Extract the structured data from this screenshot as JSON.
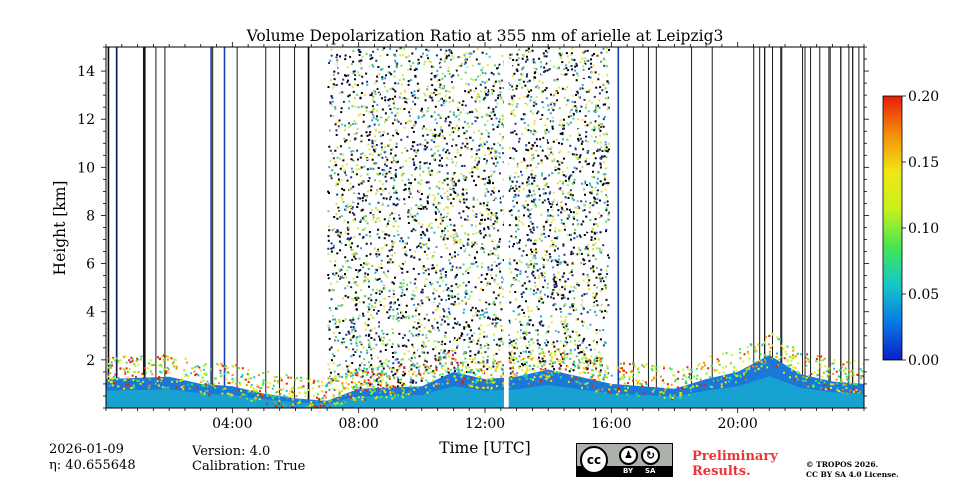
{
  "chart_data": {
    "type": "heatmap",
    "title": "Volume Depolarization Ratio at 355 nm of arielle at Leipzig3",
    "xlabel": "Time [UTC]",
    "ylabel": "Height [km]",
    "xlim_hours": [
      0,
      24
    ],
    "ylim_km": [
      0,
      15
    ],
    "x_ticks": [
      {
        "value": 4,
        "label": "04:00"
      },
      {
        "value": 8,
        "label": "08:00"
      },
      {
        "value": 12,
        "label": "12:00"
      },
      {
        "value": 16,
        "label": "16:00"
      },
      {
        "value": 20,
        "label": "20:00"
      }
    ],
    "y_ticks": [
      {
        "value": 2,
        "label": "2"
      },
      {
        "value": 4,
        "label": "4"
      },
      {
        "value": 6,
        "label": "6"
      },
      {
        "value": 8,
        "label": "8"
      },
      {
        "value": 10,
        "label": "10"
      },
      {
        "value": 12,
        "label": "12"
      },
      {
        "value": 14,
        "label": "14"
      }
    ],
    "colorbar": {
      "min": 0.0,
      "max": 0.2,
      "ticks": [
        {
          "value": 0.0,
          "label": "0.00"
        },
        {
          "value": 0.05,
          "label": "0.05"
        },
        {
          "value": 0.1,
          "label": "0.10"
        },
        {
          "value": 0.15,
          "label": "0.15"
        },
        {
          "value": 0.2,
          "label": "0.20"
        }
      ],
      "colormap": [
        "#0a20c8",
        "#0a78e6",
        "#14c8c8",
        "#46e650",
        "#c8f01e",
        "#f0e614",
        "#f58c0a",
        "#e61e0a"
      ]
    },
    "noisy_region_hours": [
      7.0,
      15.9
    ],
    "data_gap_hours": [
      12.6,
      12.75
    ],
    "boundary_layer_top_km": [
      [
        0,
        1.2
      ],
      [
        2,
        1.3
      ],
      [
        3,
        1.0
      ],
      [
        4,
        0.9
      ],
      [
        5,
        0.6
      ],
      [
        6,
        0.4
      ],
      [
        7,
        0.3
      ],
      [
        8,
        0.8
      ],
      [
        10,
        0.9
      ],
      [
        11,
        1.5
      ],
      [
        12,
        1.2
      ],
      [
        13,
        1.3
      ],
      [
        14,
        1.6
      ],
      [
        15,
        1.3
      ],
      [
        16,
        1.0
      ],
      [
        17,
        0.9
      ],
      [
        18,
        0.8
      ],
      [
        19,
        1.2
      ],
      [
        20,
        1.5
      ],
      [
        21,
        2.2
      ],
      [
        22,
        1.4
      ],
      [
        23,
        1.1
      ],
      [
        24,
        1.0
      ]
    ]
  },
  "footer": {
    "date": "2026-01-09",
    "eta": "η: 40.655648",
    "version": "Version: 4.0",
    "calibration": "Calibration: True",
    "preliminary_line1": "Preliminary",
    "preliminary_line2": "Results.",
    "copyright": "© TROPOS 2026.",
    "license": "CC BY SA 4.0 License.",
    "badge_cc": "cc",
    "badge_by": "BY",
    "badge_sa": "SA"
  }
}
